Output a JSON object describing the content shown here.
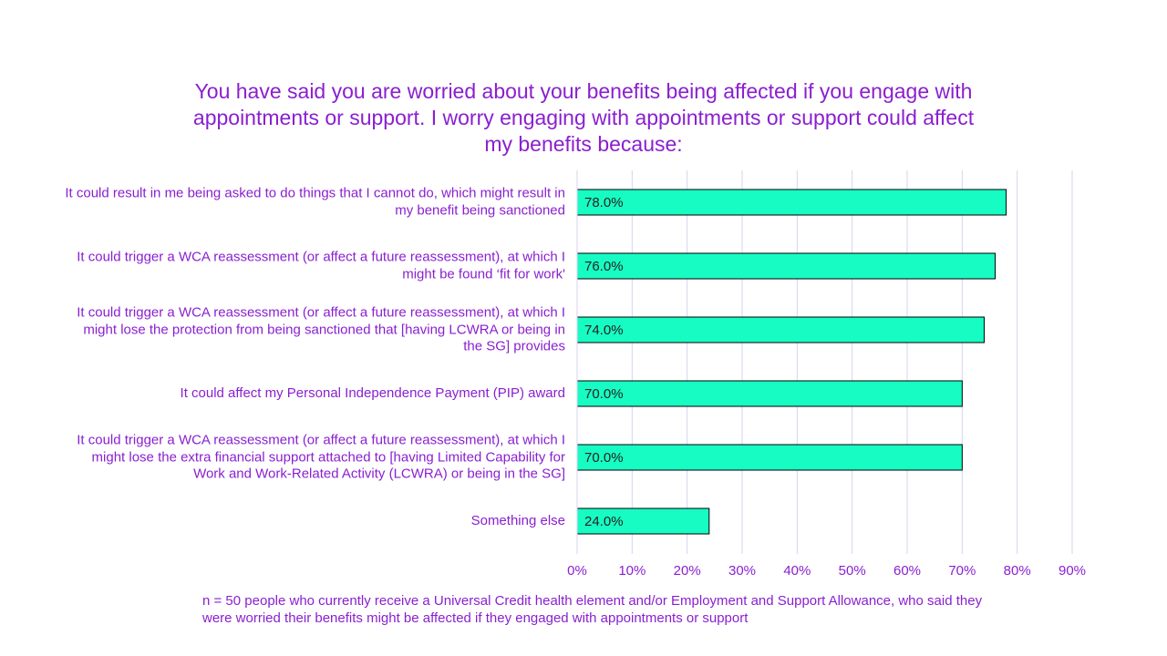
{
  "chart_data": {
    "type": "bar",
    "orientation": "horizontal",
    "title": "You have said you are worried about your benefits being affected if you engage with appointments or support. I worry engaging with appointments or support could affect my benefits because:",
    "categories": [
      "It could result in me being asked to do things that I cannot do, which might result in my benefit being sanctioned",
      "It could trigger a WCA reassessment (or affect a future reassessment), at which I might be found ‘fit for work'",
      "It could trigger a WCA reassessment (or affect a future reassessment), at which I might lose the protection from being sanctioned that [having LCWRA or being in the SG] provides",
      "It could affect my Personal Independence Payment (PIP) award",
      "It could trigger a WCA reassessment (or affect a future reassessment), at which I might lose the extra financial support attached to [having Limited Capability for Work and Work-Related Activity (LCWRA) or being in the SG]",
      "Something else"
    ],
    "values": [
      78,
      76,
      74,
      70,
      70,
      24
    ],
    "value_labels": [
      "78.0%",
      "76.0%",
      "74.0%",
      "70.0%",
      "70.0%",
      "24.0%"
    ],
    "color": "#17fcc3",
    "xlim": [
      0,
      90
    ],
    "xticks": [
      {
        "value": 0,
        "label": "0%"
      },
      {
        "value": 10,
        "label": "10%"
      },
      {
        "value": 20,
        "label": "20%"
      },
      {
        "value": 30,
        "label": "30%"
      },
      {
        "value": 40,
        "label": "40%"
      },
      {
        "value": 50,
        "label": "50%"
      },
      {
        "value": 60,
        "label": "60%"
      },
      {
        "value": 70,
        "label": "70%"
      },
      {
        "value": 80,
        "label": "80%"
      },
      {
        "value": 90,
        "label": "90%"
      }
    ],
    "grid": true,
    "note": "n = 50 people who currently receive a Universal Credit health element and/or Employment and Support Allowance, who said they were worried their benefits might be affected if they engaged with appointments or support"
  }
}
